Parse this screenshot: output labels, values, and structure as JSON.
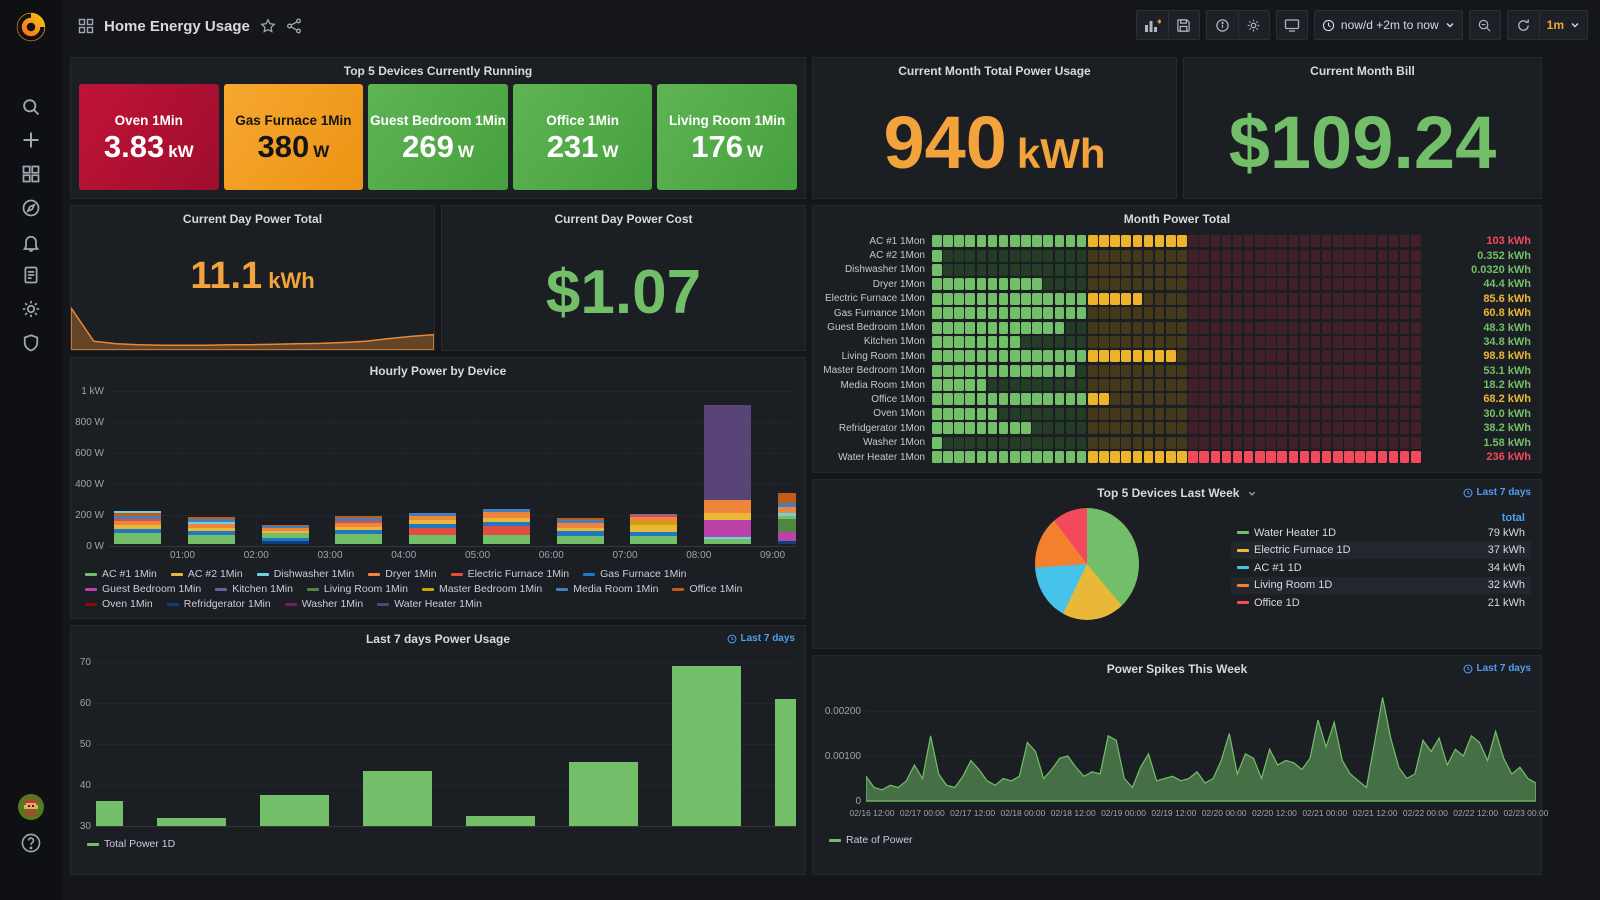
{
  "topbar": {
    "title": "Home Energy Usage",
    "time_range": "now/d +2m to now",
    "refresh": "1m"
  },
  "badges": {
    "last7": "Last 7 days"
  },
  "panels": {
    "top5_running": {
      "title": "Top 5 Devices Currently Running",
      "tiles": [
        {
          "name": "Oven 1Min",
          "value": "3.83",
          "unit": "kW",
          "bg": "red"
        },
        {
          "name": "Gas Furnace 1Min",
          "value": "380",
          "unit": "W",
          "bg": "orange"
        },
        {
          "name": "Guest Bedroom 1Min",
          "value": "269",
          "unit": "W",
          "bg": "green"
        },
        {
          "name": "Office 1Min",
          "value": "231",
          "unit": "W",
          "bg": "green"
        },
        {
          "name": "Living Room 1Min",
          "value": "176",
          "unit": "W",
          "bg": "green"
        }
      ]
    },
    "month_usage": {
      "title": "Current Month Total Power Usage",
      "value": "940",
      "unit": "kWh"
    },
    "month_bill": {
      "title": "Current Month Bill",
      "value": "$109.24"
    },
    "day_total": {
      "title": "Current Day Power Total",
      "value": "11.1",
      "unit": "kWh",
      "sparkline_pct": [
        96,
        20,
        14,
        12,
        11,
        11,
        11,
        12,
        12,
        13,
        14,
        15,
        17,
        20,
        26,
        31,
        35
      ]
    },
    "day_cost": {
      "title": "Current Day Power Cost",
      "value": "$1.07"
    },
    "heatmap": {
      "title": "Month Power Total",
      "cols": 44,
      "green_cols": 14,
      "amber_cols": 9,
      "red_cols": 21,
      "rows": [
        {
          "label": "AC #1 1Mon",
          "bright": 23,
          "value": "103 kWh",
          "value_color": "red"
        },
        {
          "label": "AC #2 1Mon",
          "bright": 1,
          "value": "0.352 kWh",
          "value_color": "green"
        },
        {
          "label": "Dishwasher 1Mon",
          "bright": 1,
          "value": "0.0320 kWh",
          "value_color": "green"
        },
        {
          "label": "Dryer 1Mon",
          "bright": 10,
          "value": "44.4 kWh",
          "value_color": "green"
        },
        {
          "label": "Electric Furnace 1Mon",
          "bright": 19,
          "value": "85.6 kWh",
          "value_color": "yellow"
        },
        {
          "label": "Gas Furnance 1Mon",
          "bright": 14,
          "value": "60.8 kWh",
          "value_color": "yellow"
        },
        {
          "label": "Guest Bedroom 1Mon",
          "bright": 12,
          "value": "48.3 kWh",
          "value_color": "green"
        },
        {
          "label": "Kitchen 1Mon",
          "bright": 8,
          "value": "34.8 kWh",
          "value_color": "green"
        },
        {
          "label": "Living Room 1Mon",
          "bright": 22,
          "value": "98.8 kWh",
          "value_color": "yellow"
        },
        {
          "label": "Master Bedroom 1Mon",
          "bright": 13,
          "value": "53.1 kWh",
          "value_color": "green"
        },
        {
          "label": "Media Room 1Mon",
          "bright": 5,
          "value": "18.2 kWh",
          "value_color": "green"
        },
        {
          "label": "Office 1Mon",
          "bright": 16,
          "value": "68.2 kWh",
          "value_color": "yellow"
        },
        {
          "label": "Oven 1Mon",
          "bright": 6,
          "value": "30.0 kWh",
          "value_color": "green"
        },
        {
          "label": "Refridgerator 1Mon",
          "bright": 9,
          "value": "38.2 kWh",
          "value_color": "green"
        },
        {
          "label": "Washer 1Mon",
          "bright": 1,
          "value": "1.58 kWh",
          "value_color": "green"
        },
        {
          "label": "Water Heater 1Mon",
          "bright": 44,
          "value": "236 kWh",
          "value_color": "red"
        }
      ]
    },
    "hourly": {
      "title": "Hourly Power by Device",
      "y_ticks": [
        "1 kW",
        "800 W",
        "600 W",
        "400 W",
        "200 W",
        "0 W"
      ],
      "x_ticks": [
        "01:00",
        "02:00",
        "03:00",
        "04:00",
        "05:00",
        "06:00",
        "07:00",
        "08:00",
        "09:00"
      ],
      "legend": [
        {
          "label": "AC #1 1Min",
          "color": "#73BF69"
        },
        {
          "label": "AC #2 1Min",
          "color": "#EAB839"
        },
        {
          "label": "Dishwasher 1Min",
          "color": "#6ED0E0"
        },
        {
          "label": "Dryer 1Min",
          "color": "#EF843C"
        },
        {
          "label": "Electric Furnace 1Min",
          "color": "#E24D42"
        },
        {
          "label": "Gas Furnace 1Min",
          "color": "#1F78C1"
        },
        {
          "label": "Guest Bedroom 1Min",
          "color": "#BA43A9"
        },
        {
          "label": "Kitchen 1Min",
          "color": "#705DA0"
        },
        {
          "label": "Living Room 1Min",
          "color": "#508642"
        },
        {
          "label": "Master Bedroom 1Min",
          "color": "#CCA300"
        },
        {
          "label": "Media Room 1Min",
          "color": "#447EBC"
        },
        {
          "label": "Office 1Min",
          "color": "#C15C17"
        },
        {
          "label": "Oven 1Min",
          "color": "#890F02"
        },
        {
          "label": "Refridgerator 1Min",
          "color": "#0A437C"
        },
        {
          "label": "Washer 1Min",
          "color": "#6D1F62"
        },
        {
          "label": "Water Heater 1Min",
          "color": "#584477"
        }
      ],
      "bars": [
        {
          "segments": [
            [
              0,
              68
            ],
            [
              5,
              30
            ],
            [
              1,
              22
            ],
            [
              3,
              28
            ],
            [
              4,
              12
            ],
            [
              10,
              22
            ],
            [
              11,
              18
            ],
            [
              2,
              12
            ]
          ]
        },
        {
          "segments": [
            [
              0,
              58
            ],
            [
              5,
              28
            ],
            [
              1,
              18
            ],
            [
              3,
              26
            ],
            [
              2,
              10
            ],
            [
              10,
              20
            ],
            [
              11,
              16
            ]
          ]
        },
        {
          "segments": [
            [
              13,
              20
            ],
            [
              5,
              18
            ],
            [
              0,
              30
            ],
            [
              1,
              14
            ],
            [
              3,
              20
            ],
            [
              10,
              12
            ],
            [
              11,
              8
            ]
          ]
        },
        {
          "segments": [
            [
              0,
              62
            ],
            [
              5,
              30
            ],
            [
              1,
              20
            ],
            [
              3,
              26
            ],
            [
              4,
              10
            ],
            [
              10,
              20
            ],
            [
              11,
              16
            ]
          ]
        },
        {
          "segments": [
            [
              0,
              56
            ],
            [
              4,
              48
            ],
            [
              5,
              26
            ],
            [
              1,
              22
            ],
            [
              3,
              28
            ],
            [
              10,
              18
            ]
          ]
        },
        {
          "segments": [
            [
              0,
              58
            ],
            [
              4,
              58
            ],
            [
              5,
              26
            ],
            [
              1,
              24
            ],
            [
              3,
              40
            ],
            [
              10,
              20
            ]
          ]
        },
        {
          "segments": [
            [
              0,
              54
            ],
            [
              5,
              30
            ],
            [
              1,
              22
            ],
            [
              3,
              28
            ],
            [
              10,
              20
            ],
            [
              11,
              16
            ]
          ]
        },
        {
          "segments": [
            [
              0,
              54
            ],
            [
              5,
              26
            ],
            [
              1,
              44
            ],
            [
              9,
              18
            ],
            [
              3,
              32
            ],
            [
              4,
              12
            ],
            [
              10,
              8
            ]
          ]
        },
        {
          "segments": [
            [
              0,
              34
            ],
            [
              2,
              14
            ],
            [
              6,
              108
            ],
            [
              1,
              44
            ],
            [
              3,
              86
            ],
            [
              15,
              612
            ]
          ]
        },
        {
          "segments": [
            [
              13,
              18
            ],
            [
              6,
              58
            ],
            [
              8,
              84
            ],
            [
              0,
              20
            ],
            [
              2,
              18
            ],
            [
              3,
              38
            ],
            [
              10,
              28
            ],
            [
              11,
              62
            ]
          ]
        }
      ]
    },
    "top5_week": {
      "title": "Top 5 Devices Last Week",
      "table_header": "total",
      "slices": [
        {
          "label": "Water Heater 1D",
          "kwh": 79,
          "value": "79 kWh",
          "color": "#73BF69"
        },
        {
          "label": "Electric Furnace 1D",
          "kwh": 37,
          "value": "37 kWh",
          "color": "#EAB839"
        },
        {
          "label": "AC #1 1D",
          "kwh": 34,
          "value": "34 kWh",
          "color": "#45C3E8"
        },
        {
          "label": "Living Room 1D",
          "kwh": 32,
          "value": "32 kWh",
          "color": "#F2802E"
        },
        {
          "label": "Office 1D",
          "kwh": 21,
          "value": "21 kWh",
          "color": "#F2495C"
        }
      ]
    },
    "last7": {
      "title": "Last 7 days Power Usage",
      "y_ticks": [
        70,
        60,
        50,
        40,
        30
      ],
      "y_min": 30,
      "values": [
        36,
        32,
        37.5,
        43.5,
        32.5,
        45.5,
        69,
        61
      ],
      "legend": "Total Power 1D",
      "bar_color": "#73BF69"
    },
    "spikes": {
      "title": "Power Spikes This Week",
      "y_ticks": [
        "0.00200",
        "0.00100",
        "0"
      ],
      "x_ticks": [
        "02/16 12:00",
        "02/17 00:00",
        "02/17 12:00",
        "02/18 00:00",
        "02/18 12:00",
        "02/19 00:00",
        "02/19 12:00",
        "02/20 00:00",
        "02/20 12:00",
        "02/21 00:00",
        "02/21 12:00",
        "02/22 00:00",
        "02/22 12:00",
        "02/23 00:00"
      ],
      "legend": "Rate of Power",
      "line_color": "#73BF69",
      "values_milli": [
        0.55,
        0.3,
        0.25,
        0.35,
        0.3,
        0.45,
        0.8,
        0.5,
        1.45,
        0.6,
        0.35,
        0.3,
        0.55,
        0.9,
        0.7,
        0.45,
        0.35,
        0.5,
        0.45,
        0.55,
        1.3,
        1.1,
        0.5,
        0.7,
        0.95,
        1.0,
        0.75,
        0.55,
        0.65,
        0.6,
        1.45,
        1.35,
        0.5,
        0.3,
        0.75,
        1.05,
        0.45,
        0.5,
        0.55,
        0.45,
        0.5,
        0.65,
        0.4,
        0.5,
        0.9,
        1.5,
        0.6,
        1.05,
        0.95,
        0.5,
        1.15,
        0.8,
        0.9,
        0.85,
        0.7,
        0.95,
        1.8,
        1.2,
        1.75,
        0.9,
        0.6,
        0.45,
        0.3,
        1.3,
        2.3,
        1.4,
        0.75,
        0.5,
        0.6,
        1.35,
        1.1,
        1.4,
        0.8,
        1.15,
        1.0,
        1.45,
        1.3,
        0.9,
        1.55,
        0.95,
        0.6,
        0.75,
        0.5,
        0.4
      ]
    }
  },
  "chart_data": [
    {
      "id": "hourly_power_by_device",
      "type": "bar",
      "stacked": true,
      "x": [
        "00:30",
        "01:30",
        "02:30",
        "03:30",
        "04:30",
        "05:30",
        "06:30",
        "07:30",
        "08:30",
        "09:00"
      ],
      "totals_w": [
        212,
        176,
        122,
        184,
        198,
        226,
        170,
        194,
        898,
        326
      ],
      "ylabel": "W",
      "ylim": [
        0,
        1000
      ]
    },
    {
      "id": "last_7_days_power_usage",
      "type": "bar",
      "values": [
        36,
        32,
        37.5,
        43.5,
        32.5,
        45.5,
        69,
        61
      ],
      "ylim": [
        30,
        70
      ],
      "series_name": "Total Power 1D"
    },
    {
      "id": "top5_devices_last_week",
      "type": "pie",
      "categories": [
        "Water Heater 1D",
        "Electric Furnace 1D",
        "AC #1 1D",
        "Living Room 1D",
        "Office 1D"
      ],
      "values": [
        79,
        37,
        34,
        32,
        21
      ],
      "unit": "kWh"
    },
    {
      "id": "power_spikes_this_week",
      "type": "area",
      "series_name": "Rate of Power",
      "ylim": [
        0,
        0.0024
      ],
      "note": "values are values_milli x 0.001"
    },
    {
      "id": "month_power_total",
      "type": "heatmap",
      "note": "16 device rows x 44 day cells; bright cell counts and totals in panels.heatmap.rows"
    }
  ],
  "colors": {
    "accent_orange": "#F2A33C",
    "stat_green": "#73BF69",
    "value_red": "#F2495C",
    "value_yellow": "#EAB839",
    "badge_blue": "#4F9FEF"
  }
}
